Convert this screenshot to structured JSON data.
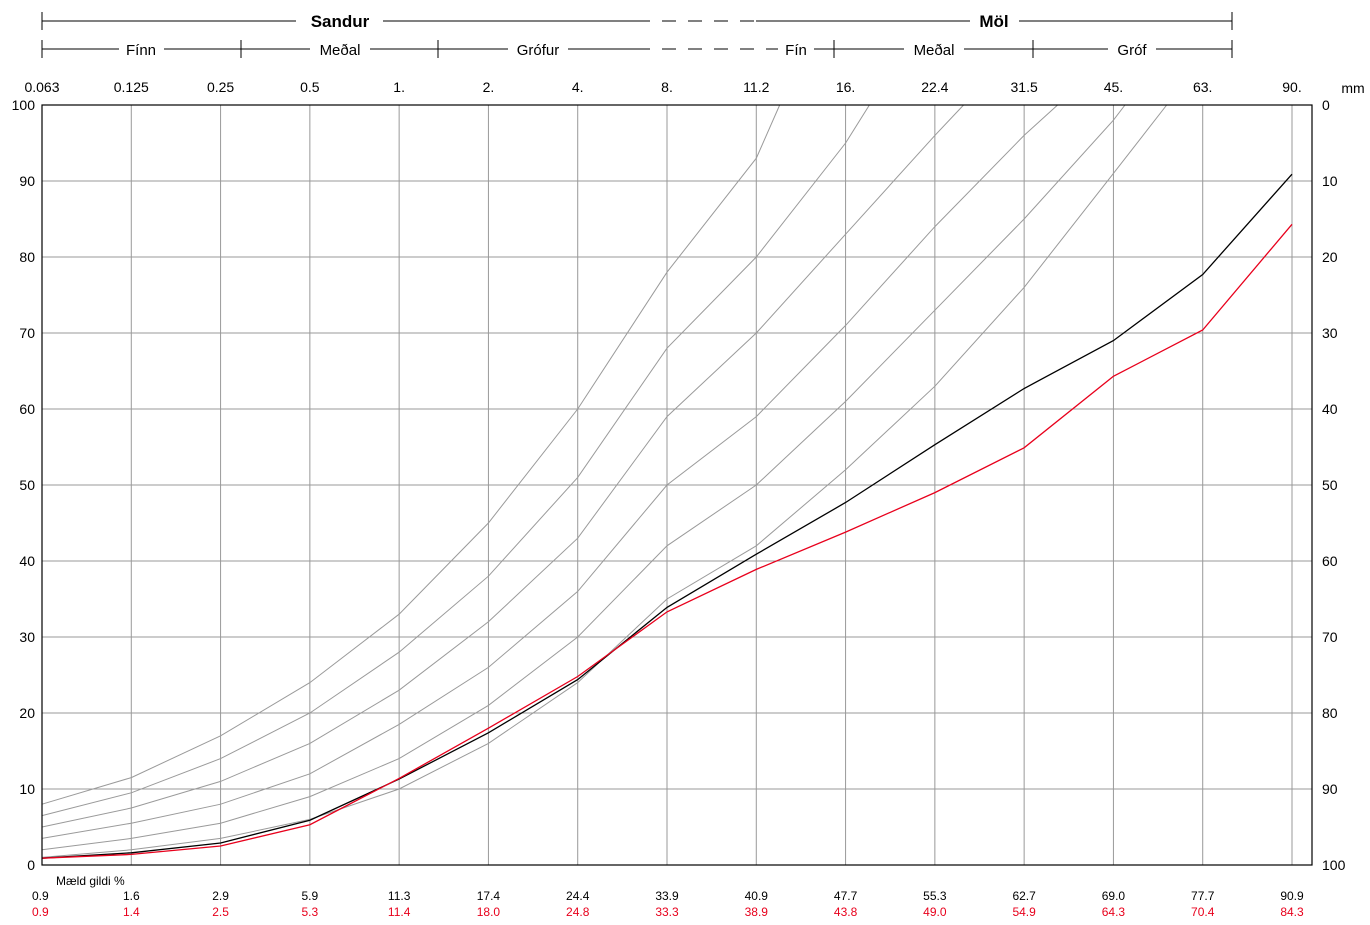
{
  "header": {
    "group_top_left": "Sandur",
    "group_top_right": "Möl",
    "sub_labels": [
      "Fínn",
      "Meðal",
      "Grófur",
      "Fín",
      "Meðal",
      "Gróf"
    ]
  },
  "chart_data": {
    "type": "line",
    "x_scale": "log",
    "x": [
      0.063,
      0.125,
      0.25,
      0.5,
      1,
      2,
      4,
      8,
      11.2,
      16,
      22.4,
      31.5,
      45,
      63,
      90
    ],
    "x_tick_labels": [
      "0.063",
      "0.125",
      "0.25",
      "0.5",
      "1.",
      "2.",
      "4.",
      "8.",
      "11.2",
      "16.",
      "22.4",
      "31.5",
      "45.",
      "63.",
      "90."
    ],
    "x_unit": "mm",
    "ylim": [
      0,
      100
    ],
    "y_ticks": [
      0,
      10,
      20,
      30,
      40,
      50,
      60,
      70,
      80,
      90,
      100
    ],
    "y2_ticks": [
      100,
      90,
      80,
      70,
      60,
      50,
      40,
      30,
      20,
      10,
      0
    ],
    "grid": true,
    "series": [
      {
        "color": "#000000",
        "values": [
          0.9,
          1.6,
          2.9,
          5.9,
          11.3,
          17.4,
          24.4,
          33.9,
          40.9,
          47.7,
          55.3,
          62.7,
          69.0,
          77.7,
          90.9
        ]
      },
      {
        "color": "#e8001c",
        "values": [
          0.9,
          1.4,
          2.5,
          5.3,
          11.4,
          18.0,
          24.8,
          33.3,
          38.9,
          43.8,
          49.0,
          54.9,
          64.3,
          70.4,
          84.3
        ]
      }
    ],
    "table_title": "Mæld gildi %",
    "table_rows": [
      {
        "color": "#000000",
        "values": [
          "0.9",
          "1.6",
          "2.9",
          "5.9",
          "11.3",
          "17.4",
          "24.4",
          "33.9",
          "40.9",
          "47.7",
          "55.3",
          "62.7",
          "69.0",
          "77.7",
          "90.9"
        ]
      },
      {
        "color": "#e8001c",
        "values": [
          "0.9",
          "1.4",
          "2.5",
          "5.3",
          "11.4",
          "18.0",
          "24.8",
          "33.3",
          "38.9",
          "43.8",
          "49.0",
          "54.9",
          "64.3",
          "70.4",
          "84.3"
        ]
      }
    ],
    "reference_curves": [
      {
        "x": [
          0.063,
          0.125,
          0.25,
          0.5,
          1,
          2,
          4,
          8,
          11.2,
          12.3
        ],
        "values": [
          8,
          11.5,
          17,
          24,
          33,
          45,
          60,
          78,
          93,
          100
        ]
      },
      {
        "x": [
          0.063,
          0.125,
          0.25,
          0.5,
          1,
          2,
          4,
          8,
          11.2,
          16,
          17.5
        ],
        "values": [
          6.5,
          9.5,
          14,
          20,
          28,
          38,
          51,
          68,
          80,
          95,
          100
        ]
      },
      {
        "x": [
          0.063,
          0.125,
          0.25,
          0.5,
          1,
          2,
          4,
          8,
          11.2,
          16,
          22.4,
          25
        ],
        "values": [
          5,
          7.5,
          11,
          16,
          23,
          32,
          43,
          59,
          70,
          83,
          96,
          100
        ]
      },
      {
        "x": [
          0.063,
          0.125,
          0.25,
          0.5,
          1,
          2,
          4,
          8,
          11.2,
          16,
          22.4,
          31.5,
          36
        ],
        "values": [
          3.5,
          5.5,
          8,
          12,
          18.5,
          26,
          36,
          50,
          59,
          71,
          84,
          96,
          100
        ]
      },
      {
        "x": [
          0.063,
          0.125,
          0.25,
          0.5,
          1,
          2,
          4,
          8,
          11.2,
          16,
          22.4,
          31.5,
          45,
          47
        ],
        "values": [
          2,
          3.5,
          5.5,
          9,
          14,
          21,
          30,
          42,
          50,
          61,
          73,
          85,
          98,
          100
        ]
      },
      {
        "x": [
          0.063,
          0.125,
          0.25,
          0.5,
          1,
          2,
          4,
          8,
          11.2,
          16,
          22.4,
          31.5,
          45,
          55
        ],
        "values": [
          1,
          2,
          3.5,
          6,
          10,
          16,
          24,
          35,
          42,
          52,
          63,
          76,
          91,
          100
        ]
      }
    ]
  }
}
